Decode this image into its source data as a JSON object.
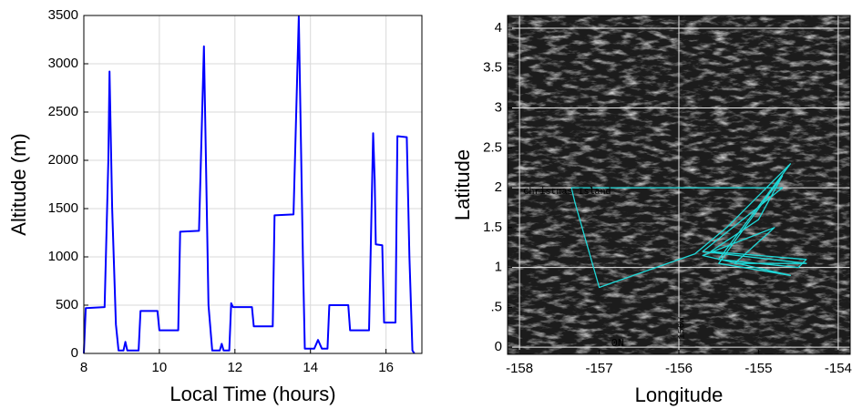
{
  "chart_data": [
    {
      "type": "line",
      "xlabel": "Local Time  (hours)",
      "ylabel": "Altitude  (m)",
      "color": "#0000ff",
      "grid": true,
      "background": "#ffffff",
      "xlim": [
        8,
        16.95
      ],
      "ylim": [
        0,
        3500
      ],
      "xticks": [
        8,
        10,
        12,
        14,
        16
      ],
      "yticks": [
        0,
        500,
        1000,
        1500,
        2000,
        2500,
        3000,
        3500
      ],
      "x": [
        8.0,
        8.05,
        8.55,
        8.65,
        8.68,
        8.75,
        8.85,
        8.92,
        9.05,
        9.1,
        9.15,
        9.45,
        9.5,
        9.95,
        10.0,
        10.5,
        10.55,
        11.05,
        11.18,
        11.3,
        11.4,
        11.6,
        11.65,
        11.7,
        11.85,
        11.9,
        11.95,
        12.45,
        12.5,
        13.0,
        13.05,
        13.55,
        13.69,
        13.8,
        13.85,
        14.1,
        14.2,
        14.3,
        14.45,
        14.5,
        15.0,
        15.05,
        15.55,
        15.66,
        15.7,
        15.73,
        15.9,
        15.95,
        16.25,
        16.3,
        16.55,
        16.62,
        16.7,
        16.75
      ],
      "values": [
        0,
        470,
        480,
        2000,
        2920,
        1500,
        300,
        30,
        30,
        120,
        30,
        30,
        440,
        440,
        240,
        240,
        1260,
        1270,
        3180,
        500,
        30,
        30,
        100,
        30,
        30,
        520,
        480,
        480,
        280,
        280,
        1430,
        1440,
        3490,
        1000,
        50,
        50,
        140,
        50,
        50,
        500,
        500,
        240,
        240,
        2280,
        1800,
        1130,
        1120,
        320,
        320,
        2250,
        2240,
        1000,
        30,
        0
      ]
    },
    {
      "type": "line",
      "xlabel": "Longitude",
      "ylabel": "Latitude",
      "color": "#1fd8d8",
      "grid": true,
      "background": "#1c1c1c",
      "xlim": [
        -158.15,
        -153.85
      ],
      "ylim": [
        -0.09,
        4.16
      ],
      "xticks": [
        -158,
        -157,
        -156,
        -155,
        -154
      ],
      "yticks": [
        0,
        {
          "value": 0.5,
          "label": ".5"
        },
        1,
        1.5,
        2,
        2.5,
        3,
        3.5,
        4
      ],
      "x": [
        -157.35,
        -157.3,
        -157.0,
        -155.8,
        -155.4,
        -154.9,
        -154.6,
        -155.5,
        -154.5,
        -154.4,
        -155.6,
        -155.0,
        -154.7,
        -155.5,
        -154.6,
        -155.7,
        -154.8,
        -155.3,
        -154.4,
        -155.7,
        -154.7,
        -157.35
      ],
      "values": [
        2.0,
        1.8,
        0.75,
        1.17,
        1.5,
        2.0,
        2.3,
        1.1,
        1.0,
        1.1,
        1.2,
        1.6,
        2.15,
        1.05,
        0.9,
        1.15,
        1.5,
        1.05,
        1.05,
        1.2,
        2.0,
        2.0
      ],
      "annotations": [
        {
          "text": "Christmas Island",
          "x": -157.95,
          "y": 1.95
        },
        {
          "text": "0N",
          "x": -156.85,
          "y": 0.05
        },
        {
          "text": "156W",
          "x": -155.97,
          "y": 0.1
        }
      ]
    }
  ]
}
